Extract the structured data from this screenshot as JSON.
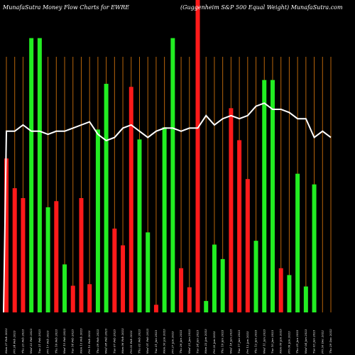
{
  "chart_data": {
    "type": "bar",
    "title_left": "MunafaSutra  Money Flow  Charts for EWRE",
    "title_right": "(Guggenheim S&P 500  Equal Weight) MunafaSutra.com",
    "categories": [
      "Mon 27 Feb 2023",
      "Fri 24 Feb 2023",
      "Thu 23 Feb 2023",
      "Wed 22 Feb 2023",
      "Tue 21 Feb 2023",
      "Fri 17 Feb 2023",
      "Thu 16 Feb 2023",
      "Wed 15 Feb 2023",
      "Tue 14 Feb 2023",
      "Mon 13 Feb 2023",
      "Fri 10 Feb 2023",
      "Thu 09 Feb 2023",
      "Wed 08 Feb 2023",
      "Tue 07 Feb 2023",
      "Mon 06 Feb 2023",
      "Fri 03 Feb 2023",
      "Thu 02 Feb 2023",
      "Wed 01 Feb 2023",
      "Tue 31 Jan 2023",
      "Mon 30 Jan 2023",
      "Fri 27 Jan 2023",
      "Thu 26 Jan 2023",
      "Wed 25 Jan 2023",
      "Tue 24 Jan 2023",
      "Mon 23 Jan 2023",
      "Fri 20 Jan 2023",
      "Thu 19 Jan 2023",
      "Wed 18 Jan 2023",
      "Tue 17 Jan 2023",
      "Fri 13 Jan 2023",
      "Thu 12 Jan 2023",
      "Wed 11 Jan 2023",
      "Tue 10 Jan 2023",
      "Mon 09 Jan 2023",
      "Fri 06 Jan 2023",
      "Thu 05 Jan 2023",
      "Wed 04 Jan 2023",
      "Tue 03 Jan 2023",
      "Fri 30 Dec 2022",
      "Thu 29 Dec 2022"
    ],
    "values": [
      202,
      163,
      150,
      360,
      360,
      138,
      146,
      63,
      35,
      150,
      37,
      240,
      300,
      110,
      88,
      296,
      227,
      105,
      10,
      243,
      360,
      58,
      33,
      410,
      15,
      89,
      70,
      268,
      226,
      175,
      94,
      305,
      305,
      58,
      49,
      182,
      34,
      168,
      0,
      0
    ],
    "colors": [
      "red",
      "red",
      "red",
      "green",
      "green",
      "green",
      "red",
      "green",
      "red",
      "red",
      "red",
      "green",
      "green",
      "red",
      "red",
      "red",
      "green",
      "green",
      "red",
      "green",
      "green",
      "red",
      "red",
      "red",
      "green",
      "green",
      "green",
      "red",
      "red",
      "red",
      "green",
      "green",
      "green",
      "red",
      "green",
      "green",
      "green",
      "green",
      "green",
      "green"
    ],
    "line": [
      0.58,
      0.58,
      0.6,
      0.58,
      0.58,
      0.57,
      0.58,
      0.58,
      0.59,
      0.6,
      0.61,
      0.57,
      0.55,
      0.56,
      0.59,
      0.6,
      0.58,
      0.56,
      0.58,
      0.59,
      0.59,
      0.58,
      0.59,
      0.59,
      0.63,
      0.6,
      0.62,
      0.63,
      0.62,
      0.63,
      0.66,
      0.67,
      0.65,
      0.65,
      0.64,
      0.62,
      0.62,
      0.56,
      0.58,
      0.56
    ],
    "ylim": [
      0,
      410
    ],
    "colors_hex": {
      "green": "#22ee22",
      "red": "#ff1a1a",
      "grid": "#b8650b",
      "line": "#ffffff",
      "background": "#000000"
    }
  }
}
